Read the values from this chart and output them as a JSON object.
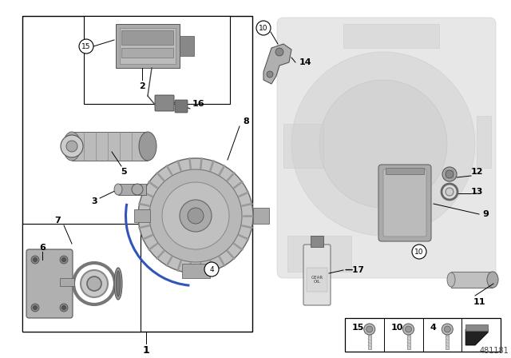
{
  "bg_color": "#ffffff",
  "catalog_number": "481181",
  "fig_width": 6.4,
  "fig_height": 4.48,
  "dpi": 100
}
